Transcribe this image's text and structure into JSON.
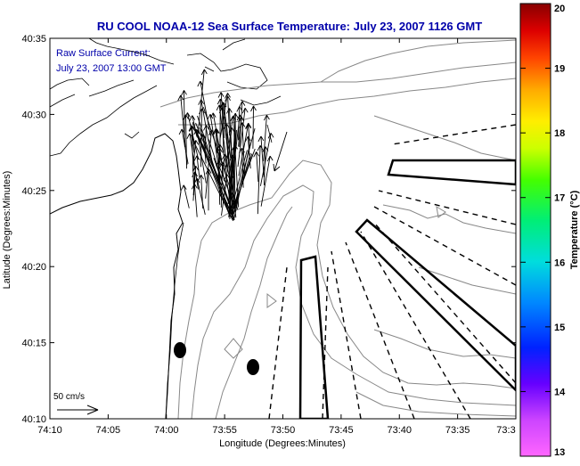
{
  "chart_data": {
    "type": "map",
    "title": "RU COOL  NOAA-12  Sea Surface Temperature:  July 23, 2007 1126 GMT",
    "annotation_lines": [
      "Raw Surface Current:",
      "July 23, 2007 13:00 GMT"
    ],
    "xlabel": "Longitude (Degrees:Minutes)",
    "ylabel": "Latitude (Degrees:Minutes)",
    "x_ticks": [
      "74:10",
      "74:05",
      "74:00",
      "73:55",
      "73:50",
      "73:45",
      "73:40",
      "73:35",
      "73:3"
    ],
    "y_ticks": [
      "40:10",
      "40:15",
      "40:20",
      "40:25",
      "40:30",
      "40:35"
    ],
    "xlim_minutes_west": [
      10,
      30
    ],
    "ylim_minutes": [
      10,
      35
    ],
    "scale_label": "50 cm/s",
    "colorbar": {
      "label": "Temperature (°C)",
      "min": 13,
      "max": 20,
      "ticks": [
        "13",
        "14",
        "15",
        "16",
        "17",
        "18",
        "19",
        "20"
      ]
    },
    "colors": {
      "title": "#0000aa",
      "axis": "#000000",
      "contour": "#888888"
    }
  }
}
